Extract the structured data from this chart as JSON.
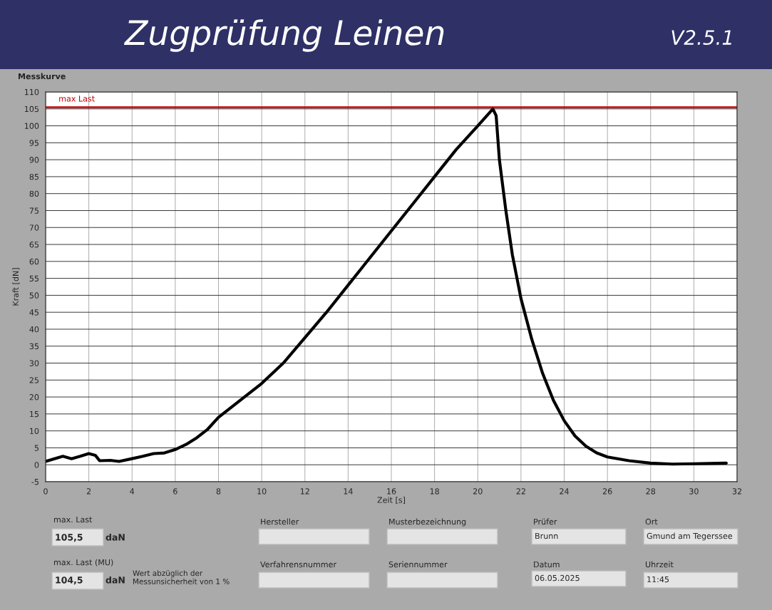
{
  "chart_data": {
    "type": "line",
    "title": "Zugprüfung Leinen",
    "subtitle": "V2.5.1",
    "xlabel": "Zeit [s]",
    "ylabel": "Kraft [dN]",
    "x": [
      0,
      0.8,
      1.2,
      1.6,
      2.0,
      2.3,
      2.5,
      3.0,
      3.4,
      4,
      4.5,
      5,
      5.5,
      6,
      6.5,
      7,
      7.5,
      8,
      9,
      10,
      11,
      12,
      13,
      14,
      15,
      16,
      17,
      18,
      19,
      20,
      20.7,
      20.85,
      21,
      21.3,
      21.6,
      22,
      22.5,
      23,
      23.5,
      24,
      24.5,
      25,
      25.5,
      26,
      27,
      28,
      29,
      30,
      31.5
    ],
    "series": [
      {
        "color": "#000000",
        "values": [
          1,
          2.5,
          1.8,
          2.5,
          3.3,
          2.8,
          1.2,
          1.3,
          1.0,
          1.8,
          2.5,
          3.3,
          3.5,
          4.5,
          6,
          8,
          10.5,
          14,
          19,
          24,
          30,
          37.5,
          45,
          53,
          61,
          69,
          77,
          85,
          93,
          100,
          105,
          103,
          90,
          75,
          62,
          49,
          37,
          27,
          19,
          13,
          8.5,
          5.5,
          3.5,
          2.3,
          1.2,
          0.5,
          0.2,
          0.3,
          0.5
        ]
      }
    ],
    "xlim": [
      0,
      32
    ],
    "ylim": [
      -5,
      110
    ],
    "xticks": [
      0,
      2,
      4,
      6,
      8,
      10,
      12,
      14,
      16,
      18,
      20,
      22,
      24,
      26,
      28,
      30,
      32
    ],
    "yticks": [
      -5,
      0,
      5,
      10,
      15,
      20,
      25,
      30,
      35,
      40,
      45,
      50,
      55,
      60,
      65,
      70,
      75,
      80,
      85,
      90,
      95,
      100,
      105,
      110
    ],
    "grid": true,
    "marker": "none",
    "line_style": "solid",
    "legend": false,
    "ref_lines": [
      {
        "axis": "y",
        "value": 105.5,
        "label": "max Last",
        "color": "#c00000"
      }
    ],
    "annotations": [
      "Messkurve",
      "max. Last",
      "105,5",
      "daN",
      "max. Last (MU)",
      "104,5",
      "daN",
      "Wert abzüglich der\nMessunsicherheit von 1 %",
      "Hersteller",
      "Verfahrensnummer",
      "Musterbezeichnung",
      "Seriennummer",
      "Prüfer",
      "Brunn",
      "Datum",
      "06.05.2025",
      "Ort",
      "Gmund am Tegerssee",
      "Uhrzeit",
      "11:45"
    ]
  }
}
